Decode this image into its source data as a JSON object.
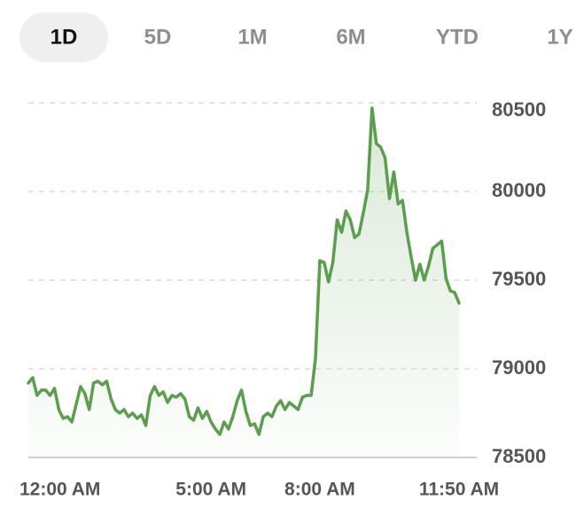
{
  "tabs": [
    "1D",
    "5D",
    "1M",
    "6M",
    "YTD",
    "1Y"
  ],
  "chart_data": {
    "type": "line",
    "color": "#5a9e4e",
    "grid": true,
    "categories": [
      "12:00 AM",
      null,
      null,
      null,
      null,
      null,
      null,
      null,
      null,
      null,
      null,
      null,
      null,
      null,
      null,
      null,
      null,
      null,
      null,
      null,
      null,
      null,
      null,
      null,
      null,
      null,
      null,
      null,
      null,
      null,
      null,
      null,
      null,
      null,
      null,
      null,
      null,
      null,
      null,
      null,
      null,
      null,
      "5:00 AM",
      null,
      null,
      null,
      null,
      null,
      null,
      null,
      null,
      null,
      null,
      null,
      null,
      null,
      null,
      null,
      null,
      null,
      null,
      null,
      null,
      null,
      null,
      null,
      null,
      "8:00 AM",
      null,
      null,
      null,
      null,
      null,
      null,
      null,
      null,
      null,
      null,
      null,
      null,
      null,
      null,
      null,
      null,
      null,
      null,
      null,
      null,
      null,
      null,
      null,
      null,
      null,
      null,
      null,
      null,
      null,
      null,
      null,
      "11:50 AM"
    ],
    "values": [
      78920,
      78950,
      78850,
      78880,
      78880,
      78850,
      78890,
      78770,
      78720,
      78730,
      78700,
      78800,
      78900,
      78860,
      78770,
      78920,
      78930,
      78910,
      78930,
      78830,
      78770,
      78750,
      78770,
      78730,
      78750,
      78720,
      78740,
      78680,
      78850,
      78900,
      78850,
      78870,
      78810,
      78850,
      78840,
      78860,
      78830,
      78730,
      78710,
      78780,
      78720,
      78760,
      78700,
      78660,
      78630,
      78700,
      78660,
      78730,
      78820,
      78880,
      78760,
      78680,
      78690,
      78630,
      78730,
      78750,
      78730,
      78790,
      78820,
      78770,
      78810,
      78790,
      78770,
      78840,
      78850,
      78850,
      79060,
      79610,
      79600,
      79490,
      79600,
      79840,
      79770,
      79890,
      79840,
      79740,
      79760,
      79880,
      80010,
      80470,
      80270,
      80250,
      80190,
      79960,
      80110,
      79930,
      79950,
      79770,
      79630,
      79500,
      79590,
      79500,
      79580,
      79680,
      79700,
      79720,
      79510,
      79440,
      79430,
      79370
    ],
    "ylim": [
      78500,
      80500
    ],
    "yticks": [
      78500,
      79000,
      79500,
      80000,
      80500
    ]
  }
}
